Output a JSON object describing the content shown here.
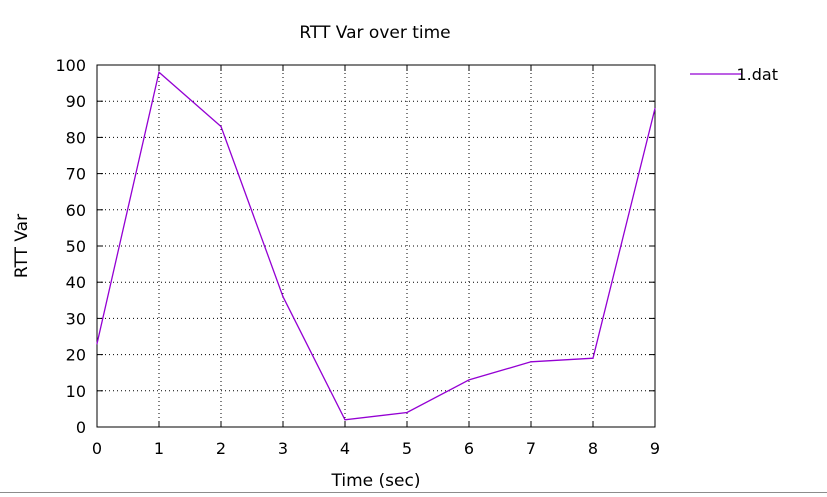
{
  "chart_data": {
    "type": "line",
    "title": "RTT Var over time",
    "xlabel": "Time (sec)",
    "ylabel": "RTT Var",
    "xlim": [
      0,
      9
    ],
    "ylim": [
      0,
      100
    ],
    "xticks": [
      0,
      1,
      2,
      3,
      4,
      5,
      6,
      7,
      8,
      9
    ],
    "yticks": [
      0,
      10,
      20,
      30,
      40,
      50,
      60,
      70,
      80,
      90,
      100
    ],
    "grid": true,
    "legend": "top-right-outside",
    "series": [
      {
        "name": "1.dat",
        "color": "#9400d3",
        "x": [
          0,
          1,
          2,
          3,
          4,
          5,
          6,
          7,
          8,
          9
        ],
        "y": [
          23,
          98,
          83,
          36,
          2,
          4,
          13,
          18,
          19,
          88
        ]
      }
    ]
  }
}
